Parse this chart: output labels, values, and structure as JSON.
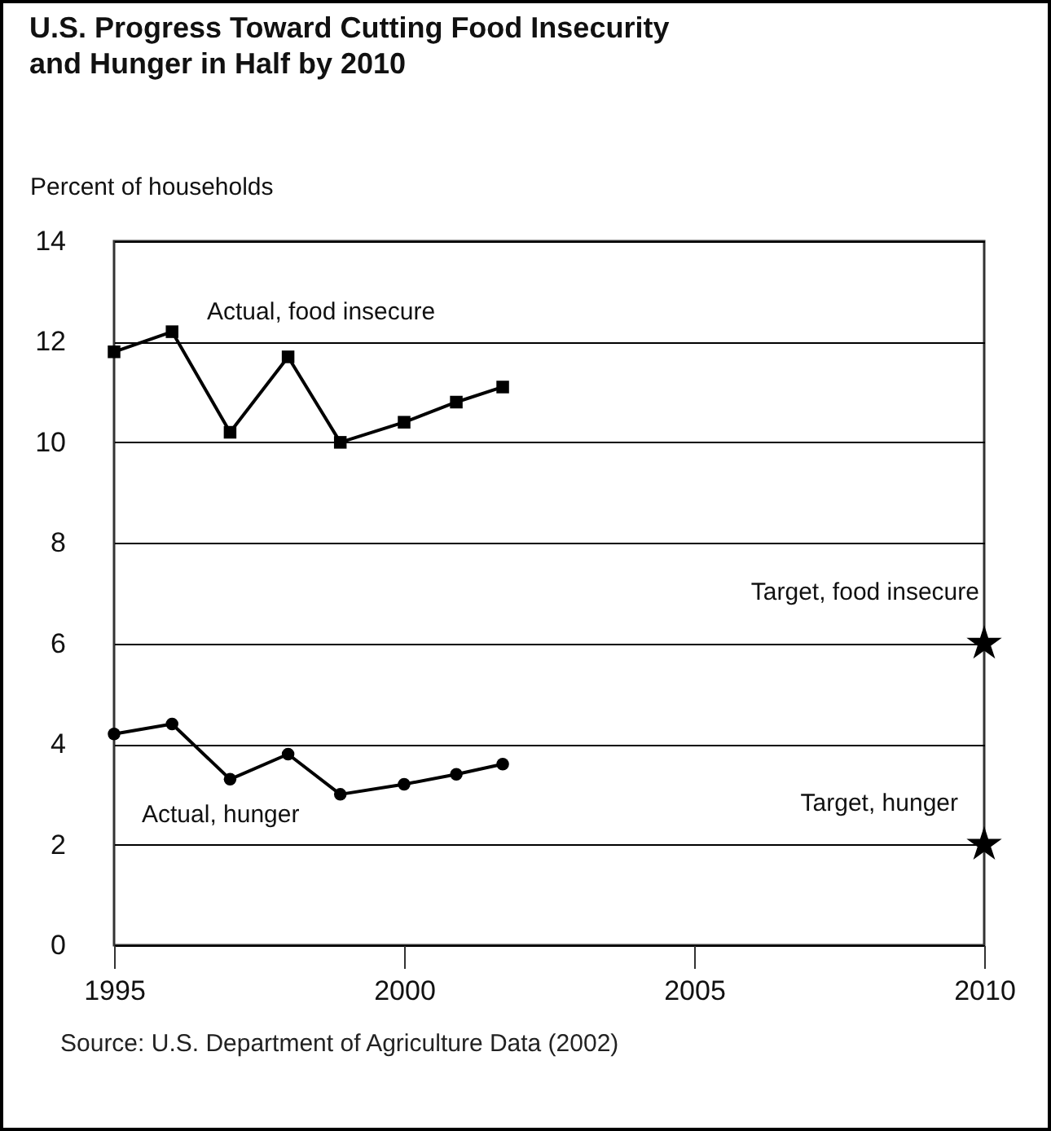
{
  "chart_data": {
    "type": "line",
    "title": "U.S. Progress Toward Cutting Food Insecurity\nand Hunger in Half by 2010",
    "ylabel": "Percent of households",
    "annotations": [
      "Source: U.S. Department of Agriculture Data (2002)"
    ],
    "xlim": [
      1995,
      2010
    ],
    "xticks": [
      1995,
      2000,
      2005,
      2010
    ],
    "ylim": [
      0,
      14
    ],
    "yticks": [
      0,
      2,
      4,
      6,
      8,
      10,
      12,
      14
    ],
    "grid": "y",
    "series": [
      {
        "name": "Actual, food insecure",
        "marker": "square",
        "color": "#000000",
        "x": [
          1995,
          1996,
          1997,
          1998,
          1998.9,
          2000,
          2000.9,
          2001.7
        ],
        "values": [
          11.8,
          12.2,
          10.2,
          11.7,
          10.0,
          10.4,
          10.8,
          11.1
        ]
      },
      {
        "name": "Actual, hunger",
        "marker": "circle",
        "color": "#000000",
        "x": [
          1995,
          1996,
          1997,
          1998,
          1998.9,
          2000,
          2000.9,
          2001.7
        ],
        "values": [
          4.2,
          4.4,
          3.3,
          3.8,
          3.0,
          3.2,
          3.4,
          3.6
        ]
      },
      {
        "name": "Target, food insecure",
        "type": "scatter",
        "marker": "star",
        "color": "#000000",
        "x": [
          2010
        ],
        "values": [
          6
        ]
      },
      {
        "name": "Target, hunger",
        "type": "scatter",
        "marker": "star",
        "color": "#000000",
        "x": [
          2010
        ],
        "values": [
          2
        ]
      }
    ]
  }
}
